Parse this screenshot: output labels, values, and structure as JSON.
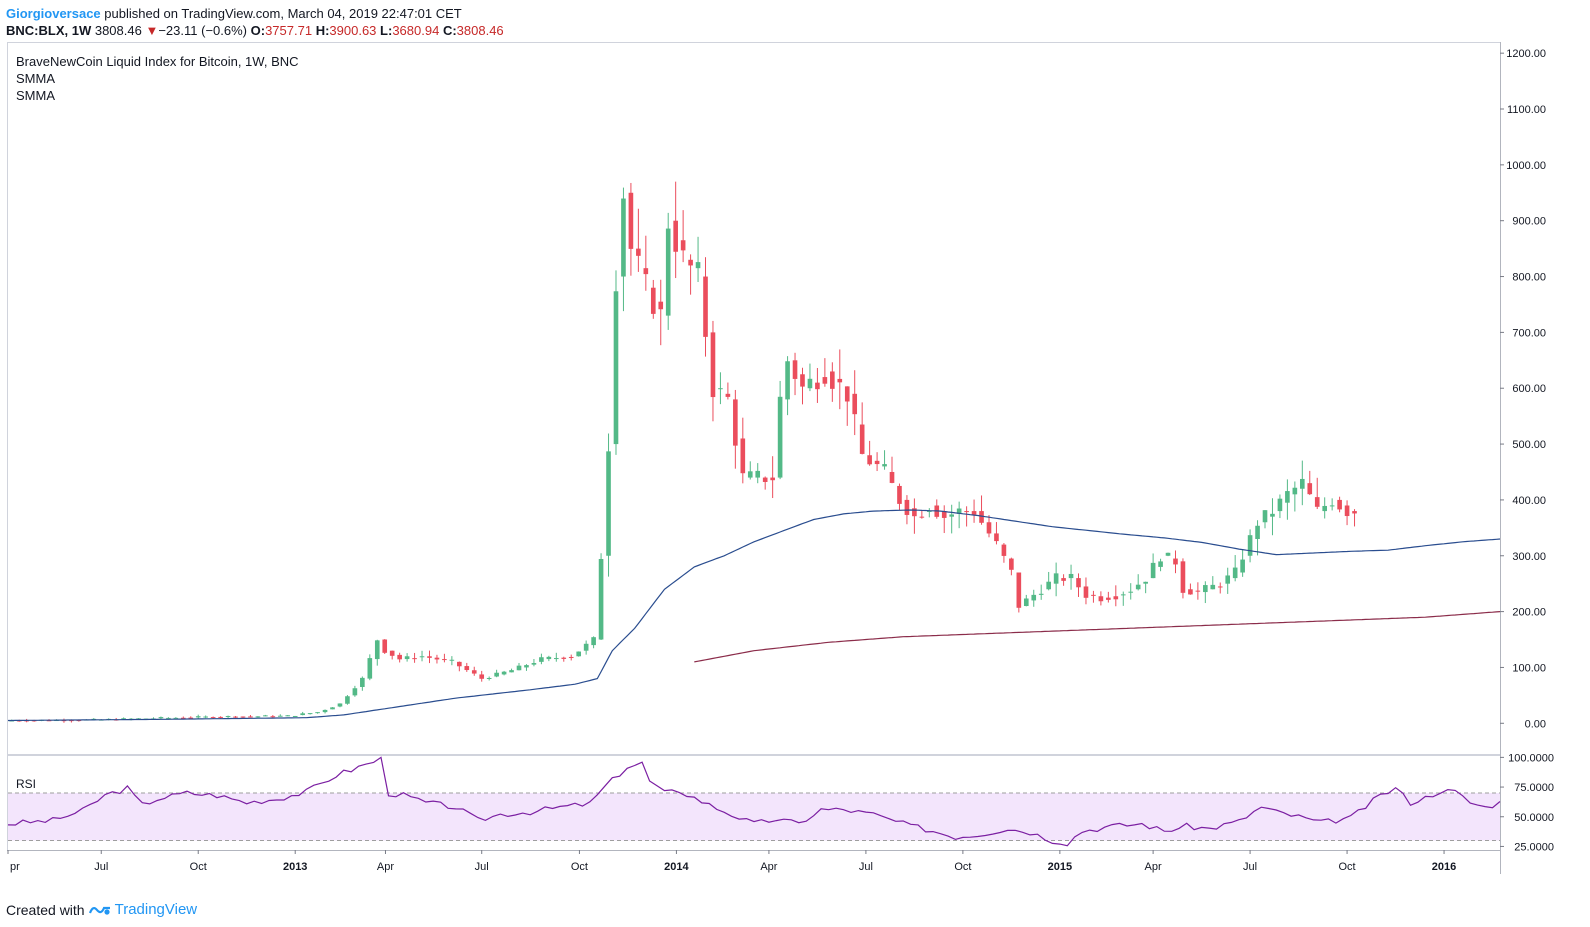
{
  "header": {
    "author": "Giorgioversace",
    "published": " published on TradingView.com, March 04, 2019 22:47:01 CET",
    "symbol": "BNC:BLX, 1W",
    "last": "3808.46",
    "change_arrow": "▼",
    "change": "−23.11 (−0.6%)",
    "o_label": "O:",
    "o_value": "3757.71",
    "h_label": "H:",
    "h_value": "3900.63",
    "l_label": "L:",
    "l_value": "3680.94",
    "c_label": "C:",
    "c_value": "3808.46"
  },
  "legend": {
    "title": "BraveNewCoin Liquid Index for Bitcoin, 1W, BNC",
    "indicator1": "SMMA",
    "indicator2": "SMMA"
  },
  "rsi_label": "RSI",
  "footer": {
    "created_with": "Created with",
    "brand": "TradingView"
  },
  "colors": {
    "up": "#53b987",
    "down": "#eb4d5c",
    "smma_fast": "#2a4d8f",
    "smma_slow": "#8b2c4a",
    "rsi": "#7b1fa2",
    "rsi_band": "#f3e5fc"
  },
  "chart_data": [
    {
      "type": "candlestick",
      "title": "BraveNewCoin Liquid Index for Bitcoin, 1W, BNC",
      "ylim": [
        -55,
        1220
      ],
      "y_ticks": [
        0,
        100,
        200,
        300,
        400,
        500,
        600,
        700,
        800,
        900,
        1000,
        1100,
        1200
      ],
      "y_tick_labels": [
        "0.00",
        "100.00",
        "200.00",
        "300.00",
        "400.00",
        "500.00",
        "600.00",
        "700.00",
        "800.00",
        "900.00",
        "1000.00",
        "1100.00",
        "1200.00"
      ],
      "x_labels": [
        {
          "label": "pr",
          "week": 0
        },
        {
          "label": "Jul",
          "week": 12.5
        },
        {
          "label": "Oct",
          "week": 25.5
        },
        {
          "label": "2013",
          "week": 38.5
        },
        {
          "label": "Apr",
          "week": 50.6
        },
        {
          "label": "Jul",
          "week": 63.5
        },
        {
          "label": "Oct",
          "week": 76.6
        },
        {
          "label": "2014",
          "week": 89.6
        },
        {
          "label": "Apr",
          "week": 102
        },
        {
          "label": "Jul",
          "week": 115
        },
        {
          "label": "Oct",
          "week": 128
        },
        {
          "label": "2015",
          "week": 141
        },
        {
          "label": "Apr",
          "week": 153.5
        },
        {
          "label": "Jul",
          "week": 166.5
        },
        {
          "label": "Oct",
          "week": 179.5
        },
        {
          "label": "2016",
          "week": 192.5
        }
      ],
      "x_bold_labels": [
        "2013",
        "2014",
        "2015",
        "2016"
      ],
      "series": [
        {
          "name": "price",
          "anchors": [
            [
              0,
              5
            ],
            [
              12,
              6
            ],
            [
              20,
              9
            ],
            [
              30,
              12
            ],
            [
              38,
              13
            ],
            [
              42,
              20
            ],
            [
              45,
              35
            ],
            [
              48,
              80
            ],
            [
              50,
              150
            ],
            [
              51,
              130
            ],
            [
              53,
              115
            ],
            [
              56,
              120
            ],
            [
              60,
              110
            ],
            [
              64,
              80
            ],
            [
              68,
              95
            ],
            [
              72,
              115
            ],
            [
              76,
              120
            ],
            [
              79,
              150
            ],
            [
              80,
              300
            ],
            [
              81,
              500
            ],
            [
              82,
              800
            ],
            [
              83,
              950
            ],
            [
              84,
              850
            ],
            [
              86,
              780
            ],
            [
              88,
              730
            ],
            [
              89,
              900
            ],
            [
              91,
              830
            ],
            [
              93,
              800
            ],
            [
              95,
              600
            ],
            [
              97,
              580
            ],
            [
              99,
              440
            ],
            [
              101,
              440
            ],
            [
              103,
              440
            ],
            [
              104,
              580
            ],
            [
              105,
              650
            ],
            [
              107,
              600
            ],
            [
              110,
              630
            ],
            [
              113,
              590
            ],
            [
              115,
              480
            ],
            [
              118,
              450
            ],
            [
              120,
              400
            ],
            [
              122,
              370
            ],
            [
              124,
              390
            ],
            [
              126,
              370
            ],
            [
              128,
              380
            ],
            [
              130,
              380
            ],
            [
              133,
              320
            ],
            [
              135,
              270
            ],
            [
              136,
              210
            ],
            [
              138,
              230
            ],
            [
              141,
              260
            ],
            [
              143,
              260
            ],
            [
              145,
              230
            ],
            [
              147,
              225
            ],
            [
              149,
              230
            ],
            [
              151,
              240
            ],
            [
              153,
              260
            ],
            [
              155,
              300
            ],
            [
              157,
              290
            ],
            [
              158,
              240
            ],
            [
              160,
              235
            ],
            [
              163,
              250
            ],
            [
              165,
              270
            ],
            [
              167,
              330
            ],
            [
              168,
              360
            ],
            [
              170,
              380
            ],
            [
              172,
              410
            ],
            [
              174,
              430
            ],
            [
              176,
              380
            ],
            [
              178,
              400
            ],
            [
              180,
              380
            ]
          ]
        },
        {
          "name": "SMMA",
          "anchors": [
            [
              0,
              5
            ],
            [
              20,
              7
            ],
            [
              40,
              10
            ],
            [
              45,
              15
            ],
            [
              50,
              25
            ],
            [
              60,
              45
            ],
            [
              70,
              60
            ],
            [
              76,
              70
            ],
            [
              79,
              80
            ],
            [
              81,
              130
            ],
            [
              84,
              170
            ],
            [
              88,
              240
            ],
            [
              92,
              280
            ],
            [
              96,
              300
            ],
            [
              100,
              325
            ],
            [
              104,
              345
            ],
            [
              108,
              365
            ],
            [
              112,
              375
            ],
            [
              116,
              380
            ],
            [
              121,
              382
            ],
            [
              125,
              380
            ],
            [
              130,
              372
            ],
            [
              135,
              362
            ],
            [
              140,
              352
            ],
            [
              145,
              345
            ],
            [
              150,
              338
            ],
            [
              155,
              332
            ],
            [
              160,
              324
            ],
            [
              165,
              312
            ],
            [
              170,
              302
            ],
            [
              175,
              305
            ],
            [
              180,
              308
            ],
            [
              185,
              310
            ],
            [
              190,
              318
            ],
            [
              195,
              325
            ],
            [
              200,
              330
            ]
          ]
        },
        {
          "name": "SMMA",
          "anchors": [
            [
              92,
              110
            ],
            [
              100,
              130
            ],
            [
              110,
              145
            ],
            [
              120,
              155
            ],
            [
              130,
              160
            ],
            [
              140,
              165
            ],
            [
              150,
              170
            ],
            [
              160,
              175
            ],
            [
              170,
              180
            ],
            [
              180,
              185
            ],
            [
              190,
              190
            ],
            [
              195,
              195
            ],
            [
              200,
              200
            ]
          ]
        }
      ]
    },
    {
      "type": "line",
      "title": "RSI",
      "ylim": [
        22,
        102
      ],
      "y_ticks": [
        25,
        50,
        75,
        100
      ],
      "y_tick_labels": [
        "25.0000",
        "50.0000",
        "75.0000",
        "100.0000"
      ],
      "bands": [
        30,
        70
      ],
      "series": [
        {
          "name": "RSI",
          "anchors": [
            [
              0,
              44
            ],
            [
              6,
              47
            ],
            [
              10,
              55
            ],
            [
              13,
              68
            ],
            [
              16,
              74
            ],
            [
              18,
              60
            ],
            [
              20,
              65
            ],
            [
              24,
              70
            ],
            [
              28,
              68
            ],
            [
              32,
              62
            ],
            [
              36,
              65
            ],
            [
              40,
              71
            ],
            [
              44,
              85
            ],
            [
              48,
              94
            ],
            [
              50,
              99
            ],
            [
              51,
              70
            ],
            [
              53,
              68
            ],
            [
              56,
              62
            ],
            [
              60,
              58
            ],
            [
              63,
              47
            ],
            [
              66,
              52
            ],
            [
              70,
              54
            ],
            [
              74,
              58
            ],
            [
              78,
              61
            ],
            [
              80,
              75
            ],
            [
              83,
              92
            ],
            [
              85,
              95
            ],
            [
              86,
              80
            ],
            [
              88,
              70
            ],
            [
              90,
              72
            ],
            [
              94,
              60
            ],
            [
              97,
              52
            ],
            [
              100,
              44
            ],
            [
              103,
              48
            ],
            [
              106,
              44
            ],
            [
              109,
              56
            ],
            [
              112,
              56
            ],
            [
              116,
              52
            ],
            [
              120,
              44
            ],
            [
              124,
              38
            ],
            [
              127,
              33
            ],
            [
              130,
              35
            ],
            [
              134,
              40
            ],
            [
              137,
              37
            ],
            [
              140,
              30
            ],
            [
              142,
              28
            ],
            [
              144,
              38
            ],
            [
              148,
              42
            ],
            [
              152,
              44
            ],
            [
              155,
              38
            ],
            [
              158,
              42
            ],
            [
              161,
              40
            ],
            [
              165,
              46
            ],
            [
              168,
              58
            ],
            [
              170,
              54
            ],
            [
              173,
              50
            ],
            [
              176,
              45
            ],
            [
              180,
              49
            ],
            [
              184,
              68
            ],
            [
              186,
              74
            ],
            [
              188,
              62
            ],
            [
              190,
              66
            ],
            [
              192,
              72
            ],
            [
              194,
              71
            ],
            [
              196,
              62
            ],
            [
              198,
              58
            ],
            [
              200,
              62
            ]
          ]
        }
      ]
    }
  ]
}
